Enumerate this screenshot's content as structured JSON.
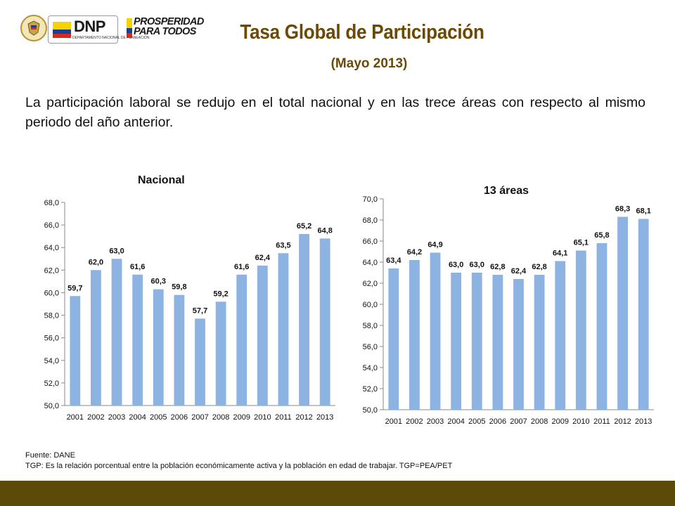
{
  "header": {
    "logos": {
      "seal": "colombia-seal-icon",
      "dnp_name": "DNP",
      "dnp_sub": "DEPARTAMENTO NACIONAL DE PLANEACIÓN",
      "slogan_line1": "PROSPERIDAD",
      "slogan_line2": "PARA TODOS",
      "flag_colors": [
        "#f6d300",
        "#1b3f94",
        "#d52b1e"
      ]
    },
    "title": "Tasa Global de Participación",
    "subtitle": "(Mayo 2013)"
  },
  "intro": "La participación laboral se redujo en el total nacional y en las trece áreas con respecto al mismo periodo del año anterior.",
  "colors": {
    "title": "#6b4a08",
    "bar": "#8db3e2",
    "band": "#5c4a08"
  },
  "chart_data": [
    {
      "type": "bar",
      "title": "Nacional",
      "categories": [
        "2001",
        "2002",
        "2003",
        "2004",
        "2005",
        "2006",
        "2007",
        "2008",
        "2009",
        "2010",
        "2011",
        "2012",
        "2013"
      ],
      "values": [
        59.7,
        62.0,
        63.0,
        61.6,
        60.3,
        59.8,
        57.7,
        59.2,
        61.6,
        62.4,
        63.5,
        65.2,
        64.8
      ],
      "value_labels": [
        "59,7",
        "62,0",
        "63,0",
        "61,6",
        "60,3",
        "59,8",
        "57,7",
        "59,2",
        "61,6",
        "62,4",
        "63,5",
        "65,2",
        "64,8"
      ],
      "ylim": [
        50,
        68
      ],
      "yticks": [
        "50,0",
        "52,0",
        "54,0",
        "56,0",
        "58,0",
        "60,0",
        "62,0",
        "64,0",
        "66,0",
        "68,0"
      ],
      "xlabel": "",
      "ylabel": "",
      "grid": false,
      "legend": "none"
    },
    {
      "type": "bar",
      "title": "13 áreas",
      "categories": [
        "2001",
        "2002",
        "2003",
        "2004",
        "2005",
        "2006",
        "2007",
        "2008",
        "2009",
        "2010",
        "2011",
        "2012",
        "2013"
      ],
      "values": [
        63.4,
        64.2,
        64.9,
        63.0,
        63.0,
        62.8,
        62.4,
        62.8,
        64.1,
        65.1,
        65.8,
        68.3,
        68.1
      ],
      "value_labels": [
        "63,4",
        "64,2",
        "64,9",
        "63,0",
        "63,0",
        "62,8",
        "62,4",
        "62,8",
        "64,1",
        "65,1",
        "65,8",
        "68,3",
        "68,1"
      ],
      "ylim": [
        50,
        70
      ],
      "yticks": [
        "50,0",
        "52,0",
        "54,0",
        "56,0",
        "58,0",
        "60,0",
        "62,0",
        "64,0",
        "66,0",
        "68,0",
        "70,0"
      ],
      "xlabel": "",
      "ylabel": "",
      "grid": false,
      "legend": "none"
    }
  ],
  "footer": {
    "source": "Fuente: DANE",
    "note": "TGP: Es la relación porcentual entre la población económicamente activa y la población  en edad de trabajar. TGP=PEA/PET"
  }
}
